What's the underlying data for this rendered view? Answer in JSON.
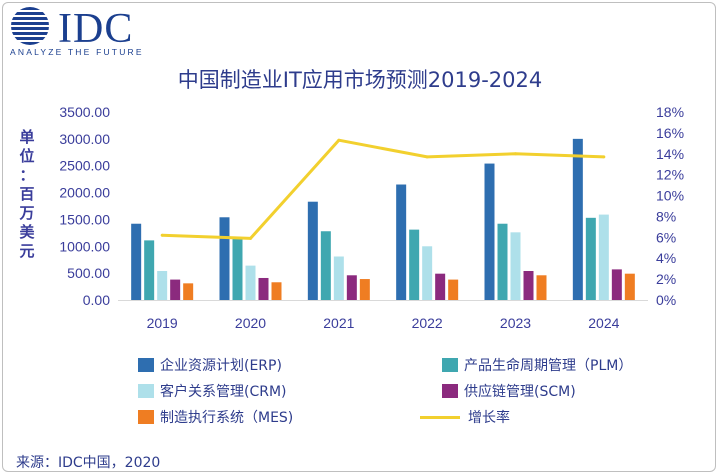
{
  "logo": {
    "brand": "IDC",
    "tagline": "ANALYZE THE FUTURE"
  },
  "colors": {
    "erp": "#2e6eb0",
    "plm": "#3fa7b0",
    "crm": "#aee0ea",
    "scm": "#8b2a7e",
    "mes": "#ef7d22",
    "growth": "#f2d02e",
    "text": "#2e3c8c"
  },
  "chart_data": {
    "type": "bar",
    "title": "中国制造业IT应用市场预测2019-2024",
    "ylabel": "单位：百万美元",
    "ylabel_lines": [
      "单位",
      "：",
      "百万美元"
    ],
    "categories": [
      "2019",
      "2020",
      "2021",
      "2022",
      "2023",
      "2024"
    ],
    "ylim": [
      0,
      3500
    ],
    "yticks": [
      "0.00",
      "500.00",
      "1000.00",
      "1500.00",
      "2000.00",
      "2500.00",
      "3000.00",
      "3500.00"
    ],
    "y2lim": [
      0,
      18
    ],
    "y2ticks": [
      "0%",
      "2%",
      "4%",
      "6%",
      "8%",
      "10%",
      "12%",
      "14%",
      "16%",
      "18%"
    ],
    "series": [
      {
        "key": "erp",
        "name": "企业资源计划(ERP)",
        "values": [
          1420,
          1540,
          1830,
          2150,
          2540,
          3000
        ]
      },
      {
        "key": "plm",
        "name": "产品生命周期管理（PLM）",
        "values": [
          1110,
          1160,
          1280,
          1310,
          1420,
          1530
        ]
      },
      {
        "key": "crm",
        "name": "客户关系管理(CRM)",
        "values": [
          540,
          640,
          810,
          1000,
          1260,
          1590
        ]
      },
      {
        "key": "scm",
        "name": "供应链管理(SCM)",
        "values": [
          380,
          410,
          460,
          490,
          540,
          570
        ]
      },
      {
        "key": "mes",
        "name": "制造执行系统（MES)",
        "values": [
          310,
          330,
          390,
          380,
          460,
          490
        ]
      }
    ],
    "line_series": {
      "key": "growth",
      "name": "增长率",
      "values": [
        6.2,
        5.9,
        15.3,
        13.7,
        14.0,
        13.7
      ]
    }
  },
  "source": "来源：IDC中国，2020"
}
